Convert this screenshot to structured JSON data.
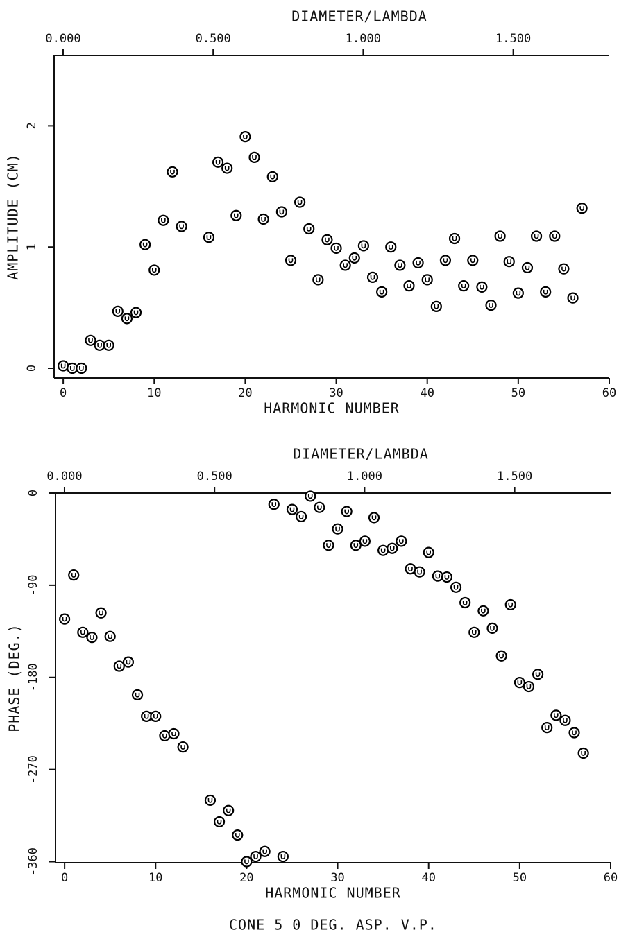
{
  "chart_data": [
    {
      "type": "scatter",
      "x_label": "HARMONIC NUMBER",
      "x2_label": "DIAMETER/LAMBDA",
      "y_label": "AMPLITUDE (CM)",
      "xlim": [
        -1,
        60
      ],
      "xticks": [
        0,
        10,
        20,
        30,
        40,
        50,
        60
      ],
      "x2lim": [
        -0.03,
        1.82
      ],
      "x2ticks": [
        {
          "value": 0,
          "label": "0.000"
        },
        {
          "value": 0.5,
          "label": "0.500"
        },
        {
          "value": 1,
          "label": "1.000"
        },
        {
          "value": 1.5,
          "label": "1.500"
        }
      ],
      "ylim": [
        -0.08,
        2.58
      ],
      "yticks": [
        0,
        1,
        2
      ],
      "color": "#000000",
      "x": [
        0,
        1,
        2,
        3,
        4,
        5,
        6,
        7,
        8,
        9,
        10,
        11,
        12,
        13,
        16,
        17,
        18,
        19,
        20,
        21,
        22,
        23,
        24,
        25,
        26,
        27,
        28,
        29,
        30,
        31,
        32,
        33,
        34,
        35,
        36,
        37,
        38,
        39,
        40,
        41,
        42,
        43,
        44,
        45,
        46,
        47,
        48,
        49,
        50,
        51,
        52,
        53,
        54,
        55,
        56,
        57
      ],
      "values": [
        0.02,
        0.0,
        0.0,
        0.23,
        0.19,
        0.19,
        0.47,
        0.41,
        0.46,
        1.02,
        0.81,
        1.22,
        1.62,
        1.17,
        1.08,
        1.7,
        1.65,
        1.26,
        1.91,
        1.74,
        1.23,
        1.58,
        1.29,
        0.89,
        1.37,
        1.15,
        0.73,
        1.06,
        0.99,
        0.85,
        0.91,
        1.01,
        0.75,
        0.63,
        1.0,
        0.85,
        0.68,
        0.87,
        0.73,
        0.51,
        0.89,
        1.07,
        0.68,
        0.89,
        0.67,
        0.52,
        1.09,
        0.88,
        0.62,
        0.83,
        1.09,
        0.63,
        1.09,
        0.82,
        0.58,
        1.32
      ]
    },
    {
      "type": "scatter",
      "x_label": "HARMONIC NUMBER",
      "x2_label": "DIAMETER/LAMBDA",
      "y_label": "PHASE (DEG.)",
      "xlim": [
        -1,
        60
      ],
      "xticks": [
        0,
        10,
        20,
        30,
        40,
        50,
        60
      ],
      "x2lim": [
        -0.03,
        1.82
      ],
      "x2ticks": [
        {
          "value": 0,
          "label": "0.000"
        },
        {
          "value": 0.5,
          "label": "0.500"
        },
        {
          "value": 1,
          "label": "1.000"
        },
        {
          "value": 1.5,
          "label": "1.500"
        }
      ],
      "ylim": [
        -361,
        0
      ],
      "yticks": [
        0,
        -90,
        -180,
        -270,
        -360
      ],
      "color": "#000000",
      "x": [
        0,
        1,
        2,
        3,
        4,
        5,
        6,
        7,
        8,
        9,
        10,
        11,
        12,
        13,
        16,
        17,
        18,
        19,
        20,
        21,
        22,
        23,
        24,
        25,
        26,
        27,
        28,
        29,
        30,
        31,
        32,
        33,
        34,
        35,
        36,
        37,
        38,
        39,
        40,
        41,
        42,
        43,
        44,
        45,
        46,
        47,
        48,
        49,
        50,
        51,
        52,
        53,
        54,
        55,
        56,
        57
      ],
      "values": [
        -123,
        -80,
        -136,
        -141,
        -117,
        -140,
        -169,
        -165,
        -197,
        -218,
        -218,
        -237,
        -235,
        -248,
        -300,
        -321,
        -310,
        -334,
        -360,
        -355,
        -350,
        -11,
        -355,
        -16,
        -23,
        -3,
        -14,
        -51,
        -35,
        -18,
        -51,
        -47,
        -24,
        -56,
        -54,
        -47,
        -74,
        -77,
        -58,
        -81,
        -82,
        -92,
        -107,
        -136,
        -115,
        -132,
        -159,
        -109,
        -185,
        -189,
        -177,
        -229,
        -217,
        -222,
        -234,
        -254
      ]
    }
  ],
  "caption": "CONE 5 0 DEG. ASP. V.P."
}
